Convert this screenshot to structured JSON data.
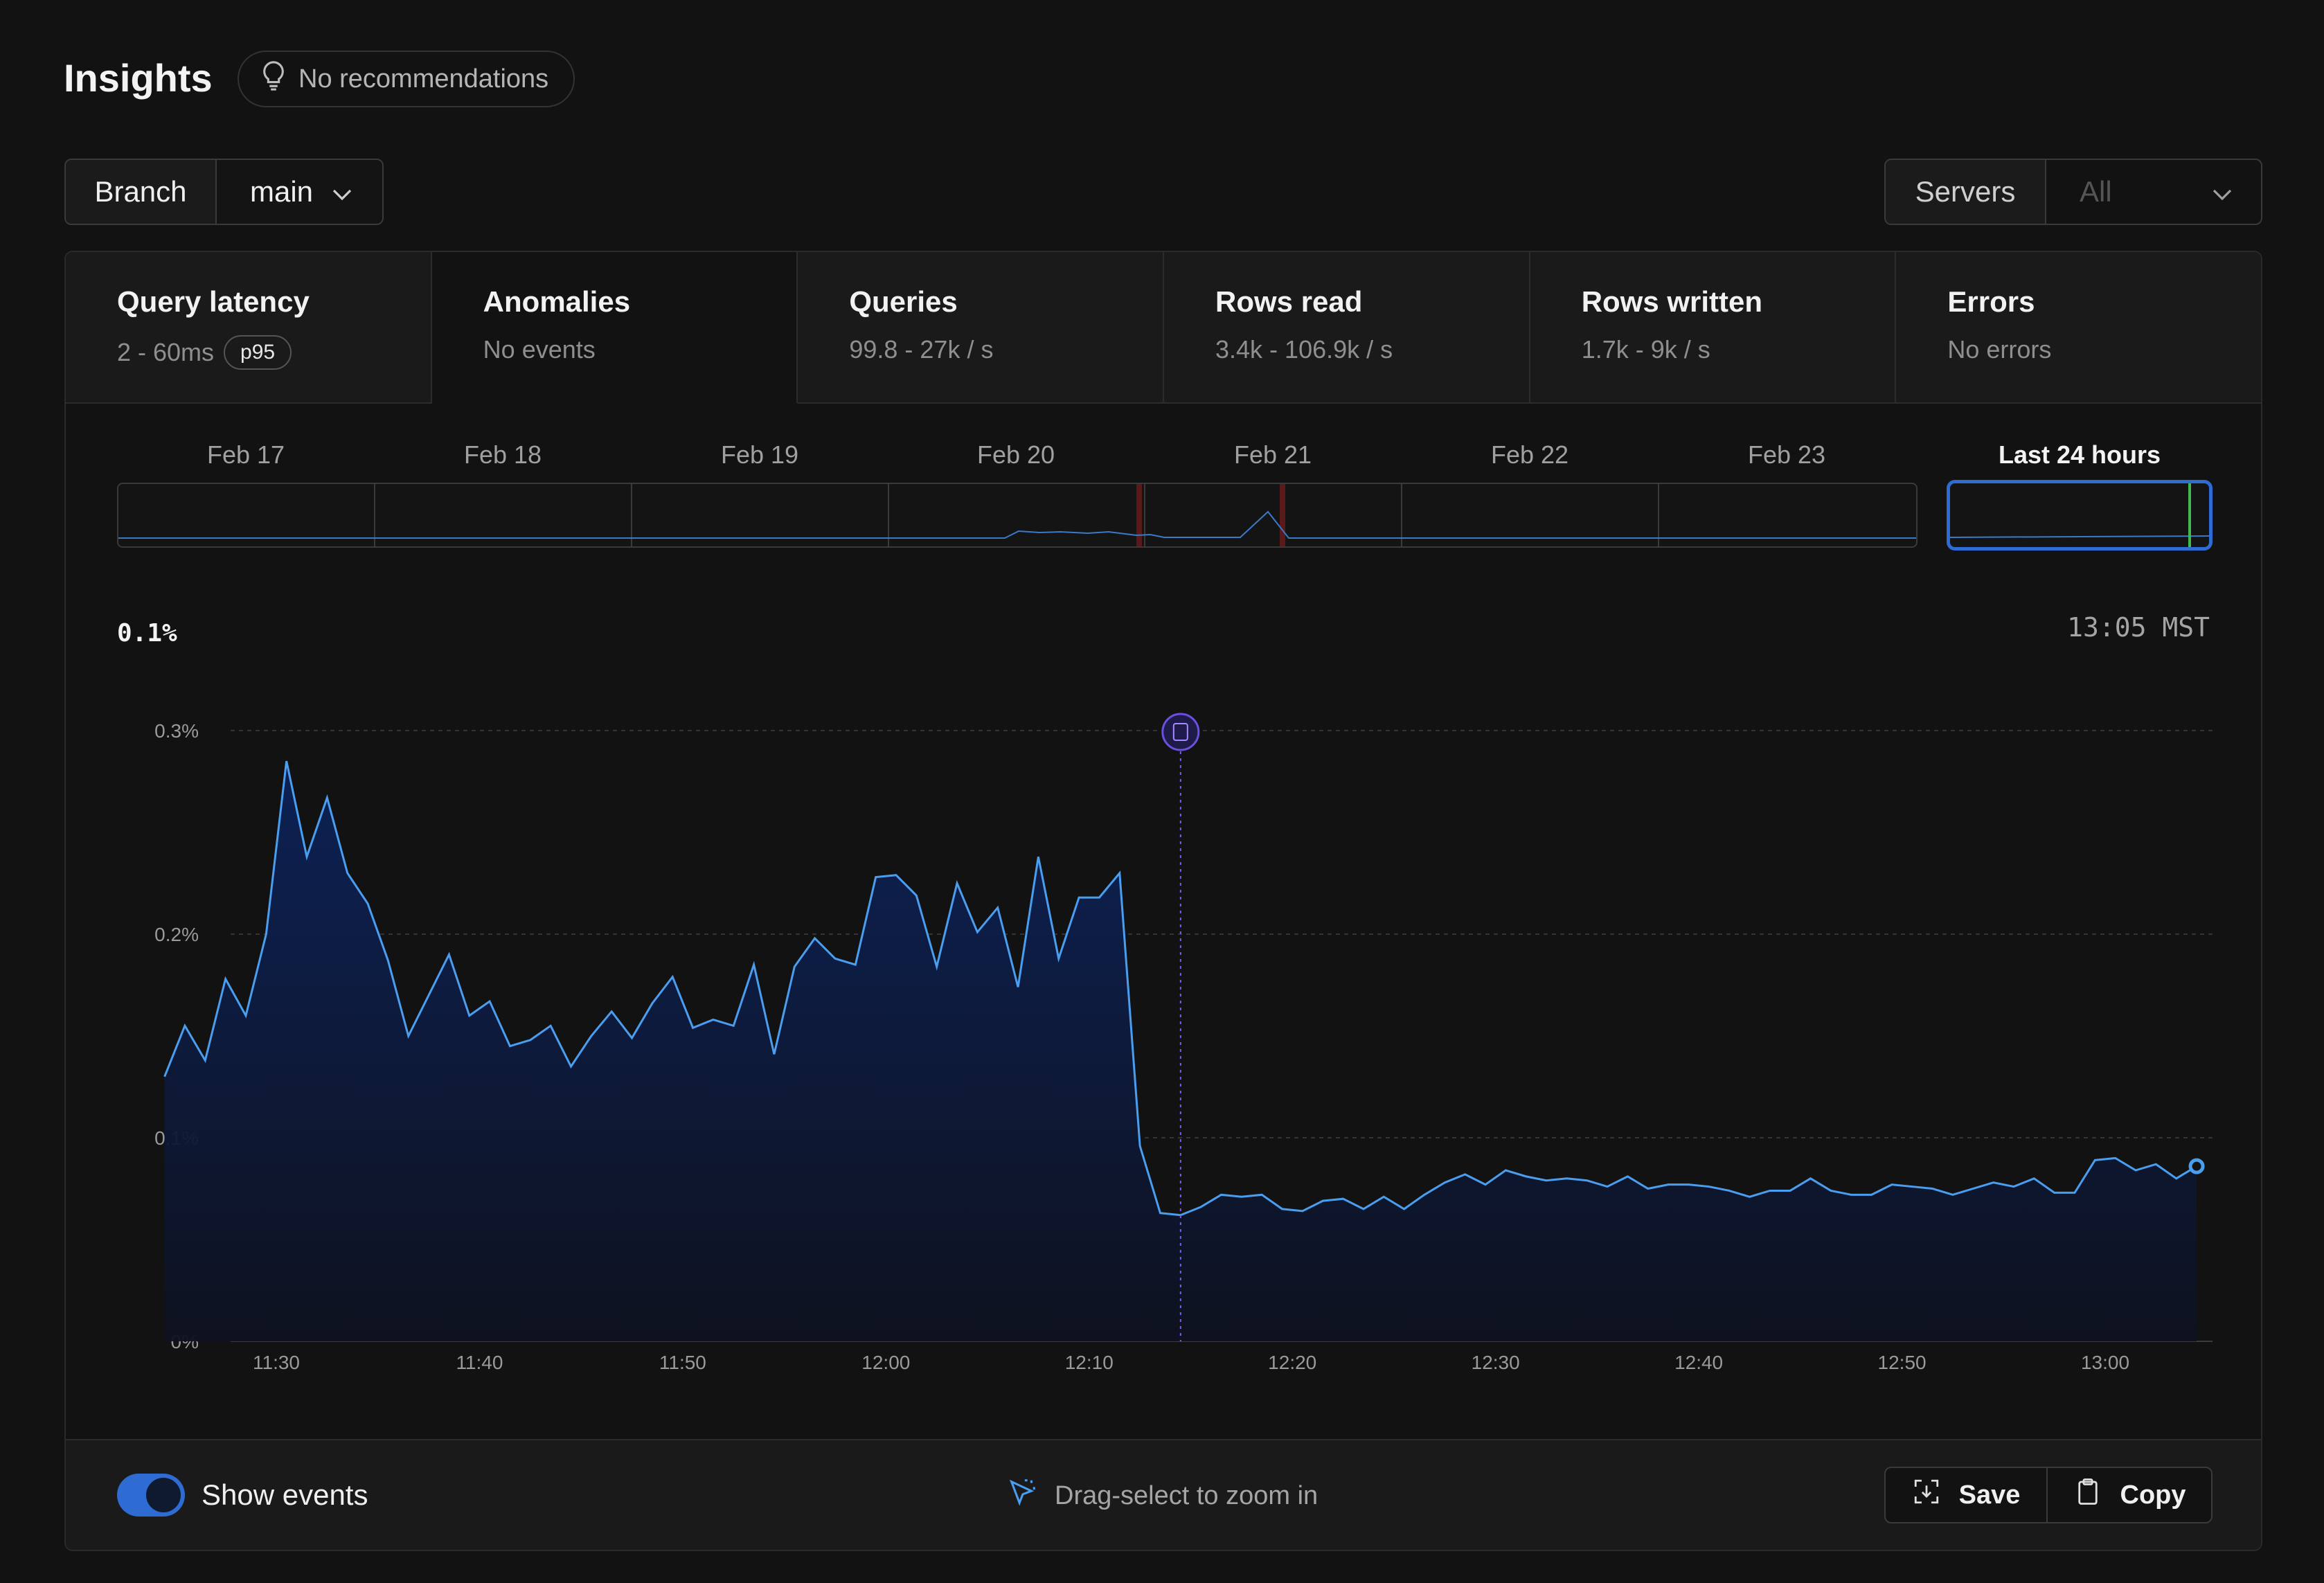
{
  "header": {
    "title": "Insights",
    "recommendations": "No recommendations"
  },
  "branch": {
    "label": "Branch",
    "value": "main"
  },
  "servers": {
    "label": "Servers",
    "value": "All"
  },
  "tabs": [
    {
      "title": "Query latency",
      "subtitle": "2 - 60ms",
      "badge": "p95"
    },
    {
      "title": "Anomalies",
      "subtitle": "No events"
    },
    {
      "title": "Queries",
      "subtitle": "99.8 - 27k / s"
    },
    {
      "title": "Rows read",
      "subtitle": "3.4k - 106.9k / s"
    },
    {
      "title": "Rows written",
      "subtitle": "1.7k - 9k / s"
    },
    {
      "title": "Errors",
      "subtitle": "No errors"
    }
  ],
  "date_strip": {
    "days": [
      "Feb 17",
      "Feb 18",
      "Feb 19",
      "Feb 20",
      "Feb 21",
      "Feb 22",
      "Feb 23"
    ],
    "last_label": "Last 24 hours"
  },
  "readout": {
    "value": "0.1%",
    "time": "13:05 MST"
  },
  "colors": {
    "line": "#4a9ef0",
    "fill": "#0b1a3f",
    "accent": "#2e6bd3",
    "event": "#8b5cf6"
  },
  "chart_data": {
    "type": "area",
    "x_unit": "time",
    "y_unit": "%",
    "ylim": [
      0,
      0.3
    ],
    "yticks": [
      "0%",
      "0.1%",
      "0.2%",
      "0.3%"
    ],
    "xticks": [
      "11:30",
      "11:40",
      "11:50",
      "12:00",
      "12:10",
      "12:20",
      "12:30",
      "12:40",
      "12:50",
      "13:00"
    ],
    "x_start": "11:24.5",
    "x_end": "13:05",
    "x_step_minutes": 1,
    "event_at": "12:14.5",
    "values": [
      0.13,
      0.155,
      0.138,
      0.178,
      0.16,
      0.2,
      0.285,
      0.238,
      0.267,
      0.23,
      0.215,
      0.187,
      0.15,
      0.17,
      0.19,
      0.16,
      0.167,
      0.145,
      0.148,
      0.155,
      0.135,
      0.15,
      0.162,
      0.149,
      0.166,
      0.179,
      0.154,
      0.158,
      0.155,
      0.185,
      0.141,
      0.184,
      0.198,
      0.188,
      0.185,
      0.228,
      0.229,
      0.219,
      0.184,
      0.225,
      0.201,
      0.213,
      0.174,
      0.238,
      0.188,
      0.218,
      0.218,
      0.23,
      0.096,
      0.063,
      0.062,
      0.066,
      0.072,
      0.071,
      0.072,
      0.065,
      0.064,
      0.069,
      0.07,
      0.065,
      0.071,
      0.065,
      0.072,
      0.078,
      0.082,
      0.077,
      0.084,
      0.081,
      0.079,
      0.08,
      0.079,
      0.076,
      0.081,
      0.075,
      0.077,
      0.077,
      0.076,
      0.074,
      0.071,
      0.074,
      0.074,
      0.08,
      0.074,
      0.072,
      0.072,
      0.077,
      0.076,
      0.075,
      0.072,
      0.075,
      0.078,
      0.076,
      0.08,
      0.073,
      0.073,
      0.089,
      0.09,
      0.084,
      0.087,
      0.08,
      0.086
    ]
  },
  "footer": {
    "toggle_label": "Show events",
    "hint": "Drag-select to zoom in",
    "save_label": "Save",
    "copy_label": "Copy"
  }
}
